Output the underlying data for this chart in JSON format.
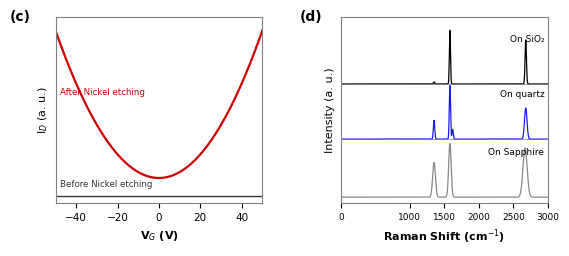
{
  "panel_c_label": "(c)",
  "panel_d_label": "(d)",
  "c_xlabel": "V$_G$ (V)",
  "c_ylabel": "I$_D$ (a. u.)",
  "c_xlim": [
    -50,
    50
  ],
  "c_xticks": [
    -40,
    -20,
    0,
    20,
    40
  ],
  "c_after_label": "After Nickel etching",
  "c_before_label": "Before Nickel etching",
  "c_after_color": "#cc0000",
  "c_before_color": "#333333",
  "d_xlabel": "Raman Shift (cm$^{-1}$)",
  "d_ylabel": "Intensity (a. u.)",
  "d_xlim": [
    0,
    3000
  ],
  "d_xticks": [
    0,
    1000,
    1500,
    2000,
    2500,
    3000
  ],
  "d_ticklabels": [
    "0",
    "1000",
    "1500",
    "2000",
    "2500",
    "3000"
  ],
  "d_labels": [
    "On SiO₂",
    "On quartz",
    "On Sapphire"
  ],
  "d_colors": [
    "#000000",
    "#1a1aff",
    "#888888"
  ]
}
